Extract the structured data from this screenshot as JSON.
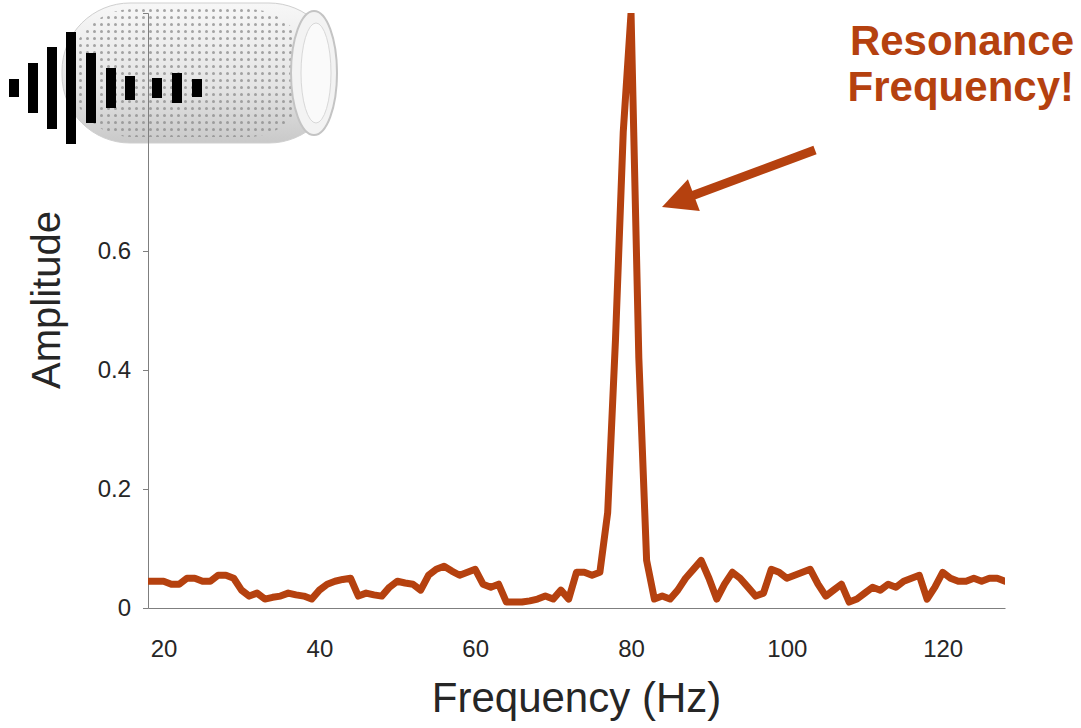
{
  "chart_data": {
    "type": "line",
    "annotation": "Resonance Frequency!",
    "x_label": "Frequency (Hz)",
    "y_label": "Amplitude",
    "color": "#b5410f",
    "x": [
      18,
      19,
      20,
      21,
      22,
      23,
      24,
      25,
      26,
      27,
      28,
      29,
      30,
      31,
      32,
      33,
      34,
      35,
      36,
      37,
      38,
      39,
      40,
      41,
      42,
      43,
      44,
      45,
      46,
      47,
      48,
      49,
      50,
      51,
      52,
      53,
      54,
      55,
      56,
      57,
      58,
      59,
      60,
      61,
      62,
      63,
      64,
      65,
      66,
      67,
      68,
      69,
      70,
      71,
      72,
      73,
      74,
      75,
      76,
      77,
      78,
      79,
      80,
      81,
      82,
      83,
      84,
      85,
      86,
      87,
      88,
      89,
      90,
      91,
      92,
      93,
      94,
      95,
      96,
      97,
      98,
      99,
      100,
      101,
      102,
      103,
      104,
      105,
      106,
      107,
      108,
      109,
      110,
      111,
      112,
      113,
      114,
      115,
      116,
      117,
      118,
      119,
      120,
      121,
      122,
      123,
      124,
      125,
      126,
      127,
      128
    ],
    "values": [
      0.045,
      0.045,
      0.045,
      0.04,
      0.04,
      0.05,
      0.05,
      0.045,
      0.045,
      0.055,
      0.055,
      0.05,
      0.03,
      0.02,
      0.025,
      0.015,
      0.018,
      0.02,
      0.025,
      0.022,
      0.02,
      0.015,
      0.03,
      0.04,
      0.045,
      0.048,
      0.05,
      0.02,
      0.025,
      0.022,
      0.02,
      0.035,
      0.045,
      0.042,
      0.04,
      0.03,
      0.055,
      0.065,
      0.07,
      0.062,
      0.055,
      0.06,
      0.065,
      0.04,
      0.035,
      0.04,
      0.01,
      0.01,
      0.01,
      0.012,
      0.015,
      0.02,
      0.015,
      0.03,
      0.015,
      0.06,
      0.06,
      0.055,
      0.06,
      0.16,
      0.45,
      0.8,
      1.0,
      0.42,
      0.08,
      0.015,
      0.02,
      0.015,
      0.03,
      0.05,
      0.065,
      0.08,
      0.05,
      0.015,
      0.04,
      0.06,
      0.05,
      0.035,
      0.02,
      0.025,
      0.065,
      0.06,
      0.05,
      0.055,
      0.06,
      0.065,
      0.04,
      0.02,
      0.03,
      0.04,
      0.01,
      0.015,
      0.025,
      0.035,
      0.03,
      0.04,
      0.035,
      0.045,
      0.05,
      0.055,
      0.015,
      0.035,
      0.06,
      0.05,
      0.045,
      0.045,
      0.05,
      0.045,
      0.05,
      0.05,
      0.045
    ],
    "xlim": [
      18,
      128
    ],
    "ylim": [
      0,
      1.0
    ],
    "xticks": [
      20,
      40,
      60,
      80,
      100,
      120
    ],
    "yticks": [
      0,
      0.2,
      0.4,
      0.6
    ]
  }
}
